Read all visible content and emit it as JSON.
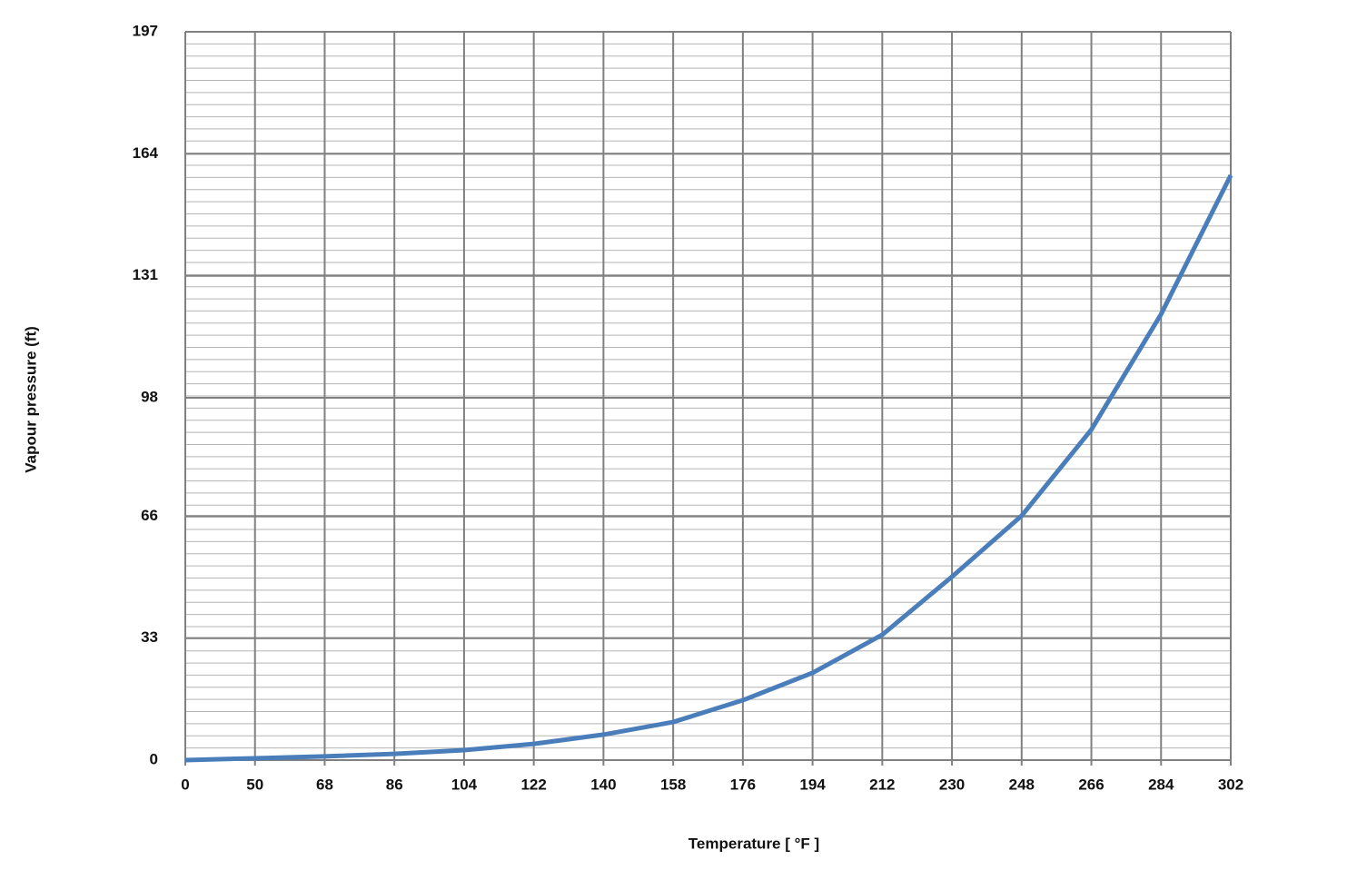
{
  "chart_data": {
    "type": "line",
    "xlabel": "Temperature [ °F ]",
    "ylabel": "Vapour pressure (ft)",
    "categories": [
      "0",
      "50",
      "68",
      "86",
      "104",
      "122",
      "140",
      "158",
      "176",
      "194",
      "212",
      "230",
      "248",
      "266",
      "284",
      "302"
    ],
    "series": [
      {
        "name": "Vapour pressure",
        "color": "#4a7ebb",
        "values": [
          0,
          0.5,
          1.0,
          1.7,
          2.7,
          4.4,
          6.9,
          10.3,
          16.2,
          23.6,
          33.9,
          49.6,
          66.1,
          89.4,
          120.6,
          158.2
        ]
      }
    ],
    "ylim": [
      0,
      197
    ],
    "yticks": [
      0,
      33,
      66,
      98,
      131,
      164,
      197
    ],
    "grid": true
  }
}
